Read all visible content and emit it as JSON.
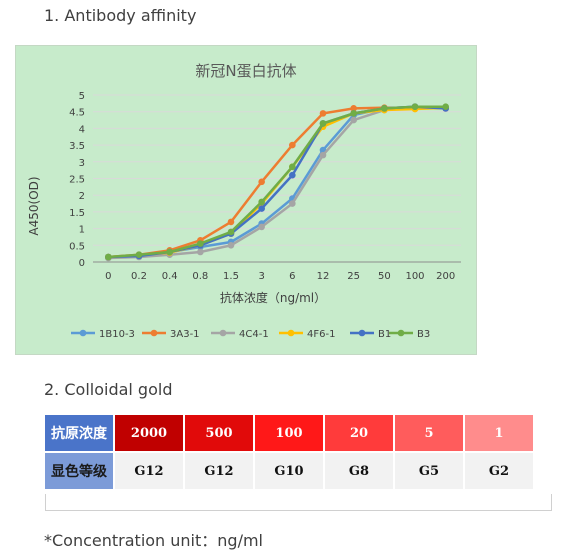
{
  "sections": {
    "affinity_heading": "1. Antibody affinity",
    "gold_heading": "2. Colloidal gold",
    "note": "*Concentration unit：ng/ml"
  },
  "chart_data": {
    "type": "line",
    "title": "新冠N蛋白抗体",
    "xlabel": "抗体浓度（ng/ml）",
    "ylabel": "A450(OD)",
    "categories": [
      "0",
      "0.2",
      "0.4",
      "0.8",
      "1.5",
      "3",
      "6",
      "12",
      "25",
      "50",
      "100",
      "200"
    ],
    "ylim": [
      0,
      5
    ],
    "yticks": [
      "0",
      "0.5",
      "1",
      "1.5",
      "2",
      "2.5",
      "3",
      "3.5",
      "4",
      "4.5",
      "5"
    ],
    "legend_position": "bottom",
    "grid": true,
    "series": [
      {
        "name": "1B10-3",
        "color": "#5b9bd5",
        "values": [
          0.15,
          0.2,
          0.3,
          0.45,
          0.6,
          1.15,
          1.9,
          3.35,
          4.4,
          4.6,
          4.65,
          4.6
        ]
      },
      {
        "name": "3A3-1",
        "color": "#ed7d31",
        "values": [
          0.15,
          0.22,
          0.35,
          0.65,
          1.2,
          2.4,
          3.5,
          4.45,
          4.6,
          4.62,
          4.62,
          4.6
        ]
      },
      {
        "name": "4C4-1",
        "color": "#a5a5a5",
        "values": [
          0.12,
          0.15,
          0.22,
          0.3,
          0.5,
          1.05,
          1.75,
          3.2,
          4.25,
          4.55,
          4.65,
          4.6
        ]
      },
      {
        "name": "4F6-1",
        "color": "#ffc000",
        "values": [
          0.15,
          0.2,
          0.28,
          0.5,
          0.85,
          1.75,
          2.85,
          4.05,
          4.45,
          4.55,
          4.58,
          4.62
        ]
      },
      {
        "name": "B1",
        "color": "#4472c4",
        "values": [
          0.15,
          0.18,
          0.3,
          0.5,
          0.85,
          1.6,
          2.6,
          4.15,
          4.45,
          4.6,
          4.65,
          4.6
        ]
      },
      {
        "name": "B3",
        "color": "#70ad47",
        "values": [
          0.15,
          0.22,
          0.3,
          0.55,
          0.9,
          1.8,
          2.85,
          4.15,
          4.45,
          4.6,
          4.65,
          4.65
        ]
      }
    ]
  },
  "gold_table": {
    "row1_label": "抗原浓度",
    "row2_label": "显色等级",
    "concentrations": [
      "2000",
      "500",
      "100",
      "20",
      "5",
      "1"
    ],
    "grades": [
      "G12",
      "G12",
      "G10",
      "G8",
      "G5",
      "G2"
    ],
    "colors": [
      "#c00000",
      "#e10a0a",
      "#ff1818",
      "#ff3b3b",
      "#ff5c5c",
      "#ff8c8c"
    ]
  }
}
